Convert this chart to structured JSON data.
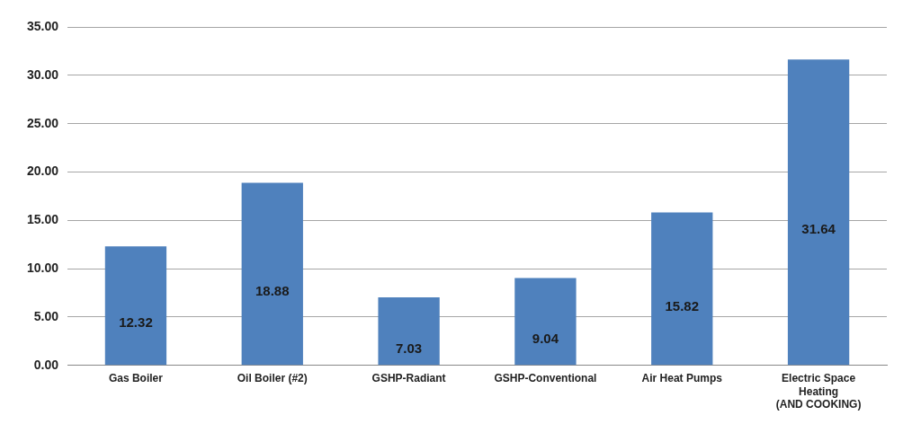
{
  "chart_data": {
    "type": "bar",
    "categories": [
      "Gas Boiler",
      "Oil Boiler (#2)",
      "GSHP-Radiant",
      "GSHP-Conventional",
      "Air Heat Pumps",
      "Electric Space\nHeating\n(AND COOKING)"
    ],
    "values": [
      12.32,
      18.88,
      7.03,
      9.04,
      15.82,
      31.64
    ],
    "color": "#4f81bd",
    "ylim": [
      0,
      35
    ],
    "yticks": [
      {
        "value": 0,
        "label": "0.00"
      },
      {
        "value": 5,
        "label": "5.00"
      },
      {
        "value": 10,
        "label": "10.00"
      },
      {
        "value": 15,
        "label": "15.00"
      },
      {
        "value": 20,
        "label": "20.00"
      },
      {
        "value": 25,
        "label": "25.00"
      },
      {
        "value": 30,
        "label": "30.00"
      },
      {
        "value": 35,
        "label": "35.00"
      }
    ],
    "grid": "y",
    "legend": false,
    "data_labels": true
  }
}
